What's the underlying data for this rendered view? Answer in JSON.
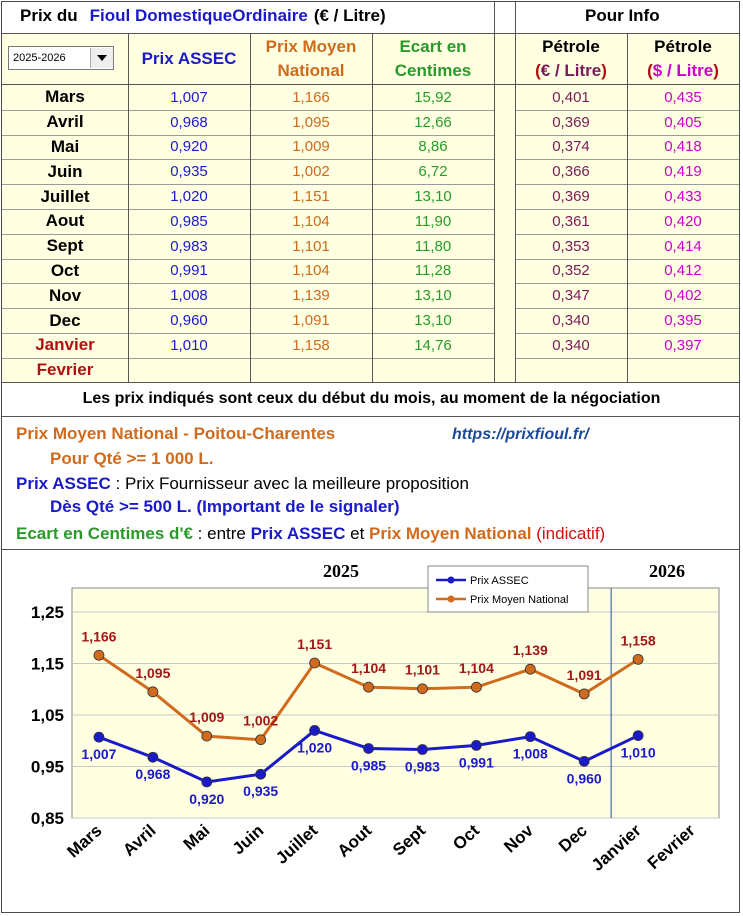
{
  "header": {
    "prefix": "Prix du",
    "product": "Fioul DomestiqueOrdinaire",
    "unit": "(€ / Litre)",
    "pour_info": "Pour Info"
  },
  "year_select": {
    "value": "2025-2026"
  },
  "columns": {
    "assec": "Prix ASSEC",
    "moyen_line1": "Prix Moyen",
    "moyen_line2": "National",
    "ecart_line1": "Ecart en",
    "ecart_line2": "Centimes",
    "petrole_eur_line1": "Pétrole",
    "petrole_eur_line2_open": "(",
    "petrole_eur_line2_unit": "€ / Litre",
    "petrole_eur_line2_close": ")",
    "petrole_usd_line1": "Pétrole",
    "petrole_usd_line2_open": "(",
    "petrole_usd_line2_unit": "$ / Litre",
    "petrole_usd_line2_close": ")"
  },
  "rows": [
    {
      "month": "Mars",
      "assec": "1,007",
      "moyen": "1,166",
      "ecart": "15,92",
      "eur": "0,401",
      "usd": "0,435"
    },
    {
      "month": "Avril",
      "assec": "0,968",
      "moyen": "1,095",
      "ecart": "12,66",
      "eur": "0,369",
      "usd": "0,405"
    },
    {
      "month": "Mai",
      "assec": "0,920",
      "moyen": "1,009",
      "ecart": "8,86",
      "eur": "0,374",
      "usd": "0,418"
    },
    {
      "month": "Juin",
      "assec": "0,935",
      "moyen": "1,002",
      "ecart": "6,72",
      "eur": "0,366",
      "usd": "0,419"
    },
    {
      "month": "Juillet",
      "assec": "1,020",
      "moyen": "1,151",
      "ecart": "13,10",
      "eur": "0,369",
      "usd": "0,433"
    },
    {
      "month": "Aout",
      "assec": "0,985",
      "moyen": "1,104",
      "ecart": "11,90",
      "eur": "0,361",
      "usd": "0,420"
    },
    {
      "month": "Sept",
      "assec": "0,983",
      "moyen": "1,101",
      "ecart": "11,80",
      "eur": "0,353",
      "usd": "0,414"
    },
    {
      "month": "Oct",
      "assec": "0,991",
      "moyen": "1,104",
      "ecart": "11,28",
      "eur": "0,352",
      "usd": "0,412"
    },
    {
      "month": "Nov",
      "assec": "1,008",
      "moyen": "1,139",
      "ecart": "13,10",
      "eur": "0,347",
      "usd": "0,402"
    },
    {
      "month": "Dec",
      "assec": "0,960",
      "moyen": "1,091",
      "ecart": "13,10",
      "eur": "0,340",
      "usd": "0,395"
    },
    {
      "month": "Janvier",
      "assec": "1,010",
      "moyen": "1,158",
      "ecart": "14,76",
      "eur": "0,340",
      "usd": "0,397"
    },
    {
      "month": "Fevrier",
      "assec": "",
      "moyen": "",
      "ecart": "",
      "eur": "",
      "usd": ""
    }
  ],
  "notes": {
    "disclaimer": "Les prix indiqués sont ceux du début du mois, au moment de la négociation",
    "moyen_title": "Prix Moyen National - Poitou-Charentes",
    "link": "https://prixfioul.fr/",
    "moyen_qty": "Pour Qté >= 1 000 L.",
    "assec_title": "Prix ASSEC",
    "assec_desc": " : Prix Fournisseur avec la meilleure proposition",
    "assec_qty": "Dès Qté >= 500 L. (Important de le signaler)",
    "ecart_title": "Ecart en Centimes d'€",
    "ecart_mid": " : entre ",
    "ecart_assec": "Prix ASSEC",
    "ecart_and": " et ",
    "ecart_moyen": "Prix Moyen National",
    "ecart_indicatif": "(indicatif)"
  },
  "colors": {
    "assec": "#1a1ac8",
    "moyen": "#d06a1c",
    "ecart": "#2a9a2a",
    "petrole_eur": "#7a1a5a",
    "petrole_usd": "#cc00cc",
    "winter_month": "#b01010",
    "chart_bg": "#ffffe1"
  },
  "chart_data": {
    "type": "line",
    "year_left": "2025",
    "year_right": "2026",
    "categories": [
      "Mars",
      "Avril",
      "Mai",
      "Juin",
      "Juillet",
      "Aout",
      "Sept",
      "Oct",
      "Nov",
      "Dec",
      "Janvier",
      "Fevrier"
    ],
    "series": [
      {
        "name": "Prix ASSEC",
        "color": "#1a1ac8",
        "values": [
          1.007,
          0.968,
          0.92,
          0.935,
          1.02,
          0.985,
          0.983,
          0.991,
          1.008,
          0.96,
          1.01,
          null
        ],
        "labels": [
          "1,007",
          "0,968",
          "0,920",
          "0,935",
          "1,020",
          "0,985",
          "0,983",
          "0,991",
          "1,008",
          "0,960",
          "1,010",
          ""
        ]
      },
      {
        "name": "Prix Moyen National",
        "color": "#d06a1c",
        "values": [
          1.166,
          1.095,
          1.009,
          1.002,
          1.151,
          1.104,
          1.101,
          1.104,
          1.139,
          1.091,
          1.158,
          null
        ],
        "labels": [
          "1,166",
          "1,095",
          "1,009",
          "1,002",
          "1,151",
          "1,104",
          "1,101",
          "1,104",
          "1,139",
          "1,091",
          "1,158",
          ""
        ]
      }
    ],
    "ylim": [
      0.85,
      1.25
    ],
    "yticks": [
      0.85,
      0.95,
      1.05,
      1.15,
      1.25
    ],
    "ytick_labels": [
      "0,85",
      "0,95",
      "1,05",
      "1,15",
      "1,25"
    ],
    "grid": true,
    "year_separator_after": "Dec",
    "legend_placement": "top-center"
  }
}
